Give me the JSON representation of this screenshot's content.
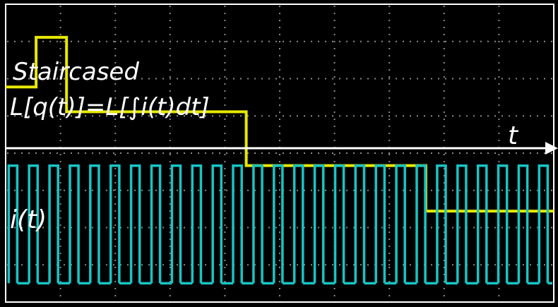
{
  "labels": {
    "staircase_line1": "Staircased",
    "staircase_line2": "L[q(t)]=L[∫i(t)dt]",
    "time_axis": "t",
    "current": "i(t)"
  },
  "colors": {
    "background": "#000000",
    "frame": "#ffffff",
    "staircase_trace": "#e8e800",
    "current_trace": "#19c4c4",
    "grid": "#8a8a8a",
    "axis": "#ffffff"
  },
  "chart_data": [
    {
      "type": "line",
      "name": "staircase",
      "title": "",
      "xlabel": "t",
      "ylabel": "",
      "grid": true,
      "x": [
        0.0,
        0.5,
        0.5,
        1.0,
        1.0,
        3.95,
        3.95,
        6.9,
        6.9,
        9.0
      ],
      "y": [
        0.2,
        0.2,
        0.8,
        0.8,
        -0.1,
        -0.1,
        -0.75,
        -0.75,
        -1.3,
        -1.3
      ],
      "xlim": [
        0,
        9.0
      ],
      "ylim": [
        -2.4,
        1.2
      ]
    },
    {
      "type": "line",
      "name": "i(t)",
      "title": "",
      "xlabel": "t",
      "ylabel": "i(t)",
      "grid": true,
      "waveform": "square",
      "pulses": 27,
      "start": 0.05,
      "period": 0.335,
      "high": 1,
      "low": 0,
      "xlim": [
        0,
        9.0
      ],
      "ylim": [
        -0.1,
        1.1
      ]
    }
  ]
}
